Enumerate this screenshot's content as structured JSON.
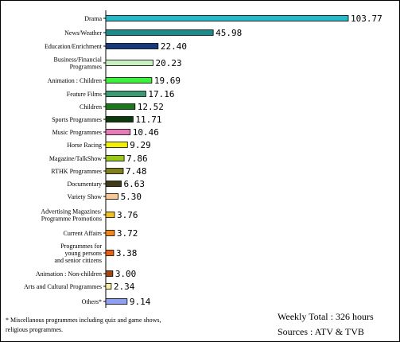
{
  "chart_data": {
    "type": "bar",
    "orientation": "horizontal",
    "categories": [
      "Drama",
      "News/Weather",
      "Education/Enrichment",
      "Business/Financial Programmes",
      "Animation : Children",
      "Feature Films",
      "Children",
      "Sports Programmes",
      "Music Programmes",
      "Horse Racing",
      "Magazine/TalkShow",
      "RTHK Programmes",
      "Documentary",
      "Variety Show",
      "Advertising Magazines/ Programme Promotions",
      "Current Affairs",
      "Programmes for young persons and senior citizens",
      "Animation : Non-children",
      "Arts and Cultural Programmes",
      "Others*"
    ],
    "values": [
      103.77,
      45.98,
      22.4,
      20.23,
      19.69,
      17.16,
      12.52,
      11.71,
      10.46,
      9.29,
      7.86,
      7.48,
      6.63,
      5.3,
      3.76,
      3.72,
      3.38,
      3.0,
      2.34,
      9.14
    ],
    "value_labels": [
      "103.77",
      "45.98",
      "22.40",
      "20.23",
      "19.69",
      "17.16",
      "12.52",
      "11.71",
      "10.46",
      "9.29",
      "7.86",
      "7.48",
      "6.63",
      "5.30",
      "3.76",
      "3.72",
      "3.38",
      "3.00",
      "2.34",
      "9.14"
    ],
    "colors": [
      "#2bb8c6",
      "#1f8a8a",
      "#173a7a",
      "#c8f0c0",
      "#3ef03e",
      "#3a9a72",
      "#1a7a1a",
      "#0c3a0c",
      "#e87ab8",
      "#f0f000",
      "#9ac81a",
      "#808020",
      "#403a1a",
      "#f8c898",
      "#f0c020",
      "#f08820",
      "#e86010",
      "#a04810",
      "#f8f0a0",
      "#8fa0f0"
    ],
    "grid": false,
    "legend": "none"
  },
  "footnote": "* Miscellanous programmes including quiz and game shows, religious programmes.",
  "totals": {
    "weekly_total": "Weekly Total : 326 hours",
    "sources": "Sources : ATV & TVB"
  }
}
